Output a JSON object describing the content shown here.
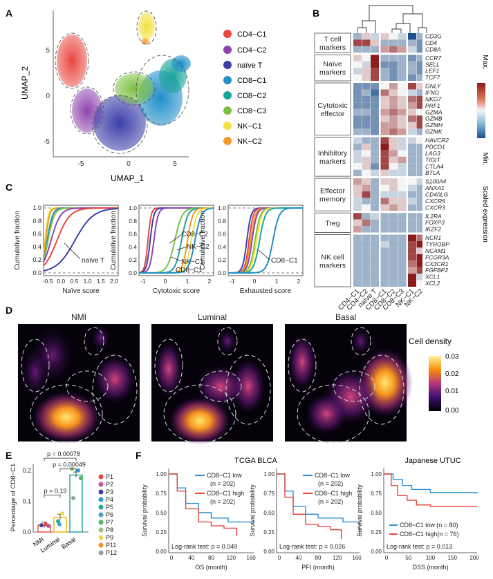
{
  "panels": {
    "A": {
      "letter": "A",
      "xlabel": "UMAP_1",
      "ylabel": "UMAP_2",
      "xticks": [
        "-5",
        "0",
        "5"
      ],
      "yticks": [
        "5",
        "0",
        "-5"
      ],
      "legend": [
        {
          "label": "CD4−C1",
          "color": "#e8473f"
        },
        {
          "label": "CD4−C2",
          "color": "#8e44ad"
        },
        {
          "label": "naïve T",
          "color": "#3b3fa8"
        },
        {
          "label": "CD8−C1",
          "color": "#1f8ec9"
        },
        {
          "label": "CD8−C2",
          "color": "#1aa39a"
        },
        {
          "label": "CD8−C3",
          "color": "#7cc043"
        },
        {
          "label": "NK−C1",
          "color": "#f3e03c"
        },
        {
          "label": "NK−C2",
          "color": "#f09a2a"
        }
      ]
    },
    "B": {
      "letter": "B",
      "groups": [
        {
          "name": "T cell markers",
          "lines": [
            "T cell",
            "markers"
          ],
          "genes": [
            "CD3G",
            "CD4",
            "CD8A"
          ]
        },
        {
          "name": "Naive markers",
          "lines": [
            "Naïve",
            "markers"
          ],
          "genes": [
            "CCR7",
            "SELL",
            "LEF1",
            "TCF7"
          ]
        },
        {
          "name": "Cytotoxic effector",
          "lines": [
            "Cytotoxic",
            "effector"
          ],
          "genes": [
            "GNLY",
            "IFNG",
            "NKG7",
            "PRF1",
            "GZMA",
            "GZMB",
            "GZMH",
            "GZMK"
          ]
        },
        {
          "name": "Inhibitory markers",
          "lines": [
            "Inhibitory",
            "markers"
          ],
          "genes": [
            "HAVCR2",
            "PDCD1",
            "LAG3",
            "TIGIT",
            "CTLA4",
            "BTLA"
          ]
        },
        {
          "name": "Effector memory",
          "lines": [
            "Effector",
            "memory"
          ],
          "genes": [
            "S100A4",
            "ANXA1",
            "CD40LG",
            "CXCR6",
            "CXCR3"
          ]
        },
        {
          "name": "Treg",
          "lines": [
            "Treg"
          ],
          "genes": [
            "IL2RA",
            "FOXP3",
            "IKZF2"
          ]
        },
        {
          "name": "NK cell markers",
          "lines": [
            "NK cell",
            "markers"
          ],
          "genes": [
            "NCR1",
            "TYROBP",
            "NCAM1",
            "FCGR3A",
            "CX3CR1",
            "FGFBP2",
            "XCL1",
            "XCL2"
          ]
        }
      ],
      "columns": [
        "CD4−C1",
        "CD4−C2",
        "naïve T",
        "CD8−C1",
        "CD8−C2",
        "CD8−C3",
        "NK−C1",
        "NK−C2"
      ],
      "colorbar_max": "Max.",
      "colorbar_min": "Min.",
      "colorbar_label": "Scaled expression",
      "heatmap_values": [
        [
          0.3,
          0.6,
          0.4,
          0.6,
          0.5,
          0.4,
          0.0,
          0.3
        ],
        [
          0.9,
          0.9,
          0.6,
          0.3,
          0.3,
          0.3,
          0.3,
          0.2
        ],
        [
          0.3,
          0.3,
          0.3,
          0.7,
          0.8,
          0.7,
          0.4,
          0.2
        ],
        [
          0.6,
          0.5,
          1.0,
          0.3,
          0.3,
          0.3,
          0.2,
          0.3
        ],
        [
          0.5,
          0.4,
          1.0,
          0.2,
          0.2,
          0.3,
          0.3,
          0.2
        ],
        [
          0.4,
          0.6,
          0.9,
          0.3,
          0.2,
          0.3,
          0.3,
          0.2
        ],
        [
          0.5,
          0.6,
          0.9,
          0.3,
          0.2,
          0.3,
          0.2,
          0.3
        ],
        [
          0.2,
          0.2,
          0.2,
          0.5,
          0.7,
          0.5,
          0.9,
          0.6
        ],
        [
          0.2,
          0.3,
          0.1,
          0.8,
          0.6,
          0.5,
          0.4,
          0.3
        ],
        [
          0.2,
          0.2,
          0.2,
          0.6,
          0.7,
          0.6,
          0.8,
          0.9
        ],
        [
          0.2,
          0.2,
          0.2,
          0.6,
          0.7,
          0.6,
          0.7,
          0.9
        ],
        [
          0.3,
          0.3,
          0.2,
          0.7,
          0.8,
          0.7,
          0.6,
          0.5
        ],
        [
          0.2,
          0.2,
          0.2,
          0.6,
          0.7,
          0.6,
          0.8,
          0.9
        ],
        [
          0.2,
          0.2,
          0.2,
          0.7,
          0.7,
          0.6,
          0.6,
          0.9
        ],
        [
          0.3,
          0.3,
          0.2,
          0.7,
          0.8,
          0.7,
          0.4,
          0.3
        ],
        [
          0.4,
          0.3,
          0.3,
          0.9,
          0.6,
          0.4,
          0.4,
          0.5
        ],
        [
          0.3,
          0.6,
          0.3,
          1.0,
          0.6,
          0.4,
          0.3,
          0.3
        ],
        [
          0.4,
          0.5,
          0.3,
          0.9,
          0.7,
          0.5,
          0.3,
          0.3
        ],
        [
          0.4,
          0.6,
          0.3,
          0.9,
          0.6,
          0.7,
          0.3,
          0.3
        ],
        [
          0.5,
          0.6,
          0.2,
          0.9,
          0.5,
          0.4,
          0.3,
          0.3
        ],
        [
          0.3,
          0.5,
          0.4,
          0.6,
          0.4,
          0.4,
          0.3,
          0.3
        ],
        [
          0.7,
          0.6,
          0.3,
          0.6,
          0.6,
          0.5,
          0.5,
          0.4
        ],
        [
          0.6,
          0.7,
          0.3,
          0.5,
          0.6,
          0.5,
          0.4,
          0.3
        ],
        [
          0.6,
          0.9,
          0.3,
          0.4,
          0.4,
          0.4,
          0.3,
          0.3
        ],
        [
          0.4,
          0.3,
          0.3,
          0.8,
          0.6,
          0.6,
          0.4,
          0.3
        ],
        [
          0.4,
          0.5,
          0.3,
          0.6,
          0.7,
          0.6,
          0.3,
          0.3
        ],
        [
          0.9,
          0.3,
          0.4,
          0.3,
          0.3,
          0.3,
          0.3,
          0.3
        ],
        [
          0.6,
          0.8,
          0.3,
          0.3,
          0.3,
          0.3,
          0.3,
          0.3
        ],
        [
          0.7,
          0.3,
          0.3,
          0.3,
          0.3,
          0.3,
          0.3,
          0.3
        ],
        [
          0.3,
          0.3,
          0.3,
          0.3,
          0.3,
          0.3,
          1.0,
          0.8
        ],
        [
          0.3,
          0.3,
          0.3,
          0.4,
          0.3,
          0.3,
          0.9,
          1.0
        ],
        [
          0.3,
          0.3,
          0.3,
          0.3,
          0.3,
          0.3,
          0.9,
          0.6
        ],
        [
          0.3,
          0.3,
          0.3,
          0.3,
          0.3,
          0.3,
          0.9,
          1.0
        ],
        [
          0.3,
          0.3,
          0.3,
          0.3,
          0.3,
          0.3,
          0.8,
          1.0
        ],
        [
          0.3,
          0.3,
          0.3,
          0.3,
          0.3,
          0.3,
          0.7,
          0.9
        ],
        [
          0.3,
          0.3,
          0.3,
          0.3,
          0.3,
          0.3,
          1.0,
          0.4
        ],
        [
          0.3,
          0.3,
          0.3,
          0.3,
          0.3,
          0.3,
          1.0,
          0.5
        ]
      ]
    },
    "C": {
      "letter": "C",
      "ylabel": "Cumulative fraction",
      "yticks": [
        "1.0",
        "0.8",
        "0.6",
        "0.4",
        "0.2",
        "0.0"
      ],
      "plots": [
        {
          "xlabel": "Naïve score",
          "xticks": [
            "-0.5",
            "0.0",
            "0.5",
            "1.0",
            "1.5",
            "2.0"
          ],
          "annotations": [
            "naïve T"
          ]
        },
        {
          "xlabel": "Cytotoxic score",
          "xticks": [
            "-1",
            "0",
            "1",
            "2"
          ],
          "annotations": [
            "CD8−C2",
            "NK−C2",
            "NK−C1",
            "CD8−C1"
          ]
        },
        {
          "xlabel": "Exhausted score",
          "xticks": [
            "-1",
            "0",
            "1",
            "2"
          ],
          "annotations": [
            "CD8−C1"
          ]
        }
      ]
    },
    "D": {
      "letter": "D",
      "maps": [
        "NMI",
        "Luminal",
        "Basal"
      ],
      "legend_title": "Cell density",
      "legend_ticks": [
        "0.03",
        "0.02",
        "0.01",
        "0.00"
      ]
    },
    "E": {
      "letter": "E",
      "ylabel": "Percentage of CD8−C1",
      "yticks": [
        "0.2",
        "0.1",
        "0.0"
      ],
      "pvalues": [
        "p = 0.00078",
        "p = 0.00049",
        "p = 0.19"
      ],
      "patients": [
        {
          "label": "P1",
          "color": "#e34a33"
        },
        {
          "label": "P2",
          "color": "#c2569b"
        },
        {
          "label": "P3",
          "color": "#3b3fa8"
        },
        {
          "label": "P4",
          "color": "#2f9bd6"
        },
        {
          "label": "P5",
          "color": "#1fa89c"
        },
        {
          "label": "P6",
          "color": "#45a1c9"
        },
        {
          "label": "P7",
          "color": "#57b65a"
        },
        {
          "label": "P8",
          "color": "#9ac57b"
        },
        {
          "label": "P9",
          "color": "#e8d94c"
        },
        {
          "label": "P11",
          "color": "#f0932b"
        },
        {
          "label": "P12",
          "color": "#9c9c9c"
        }
      ]
    },
    "F": {
      "letter": "F",
      "cohort1": "TCGA BLCA",
      "cohort2": "Japanese UTUC",
      "ylabel": "Survival probability",
      "yticks": [
        "1.00",
        "0.75",
        "0.50",
        "0.25",
        "0.00"
      ],
      "plots": [
        {
          "xlabel": "OS (month)",
          "xticks": [
            "0",
            "40",
            "80",
            "120",
            "160"
          ],
          "legend": [
            "CD8−C1 low",
            "(n = 202)",
            "CD8−C1 high",
            "(n = 202)"
          ],
          "logrank": "Log-rank test: p = 0.049"
        },
        {
          "xlabel": "PFI (month)",
          "xticks": [
            "0",
            "40",
            "80",
            "120",
            "160"
          ],
          "legend": [
            "CD8−C1 low",
            "(n = 202)",
            "CD8−C1 high",
            "(n = 202)"
          ],
          "logrank": "Log-rank test: p = 0.026"
        },
        {
          "xlabel": "DSS (month)",
          "xticks": [
            "0",
            "50",
            "100",
            "150",
            "200"
          ],
          "legend": [
            "CD8−C1 low (n = 80)",
            "CD8−C1 high(n = 76)"
          ],
          "logrank": "Log-rank test: p = 0.013"
        }
      ]
    }
  }
}
